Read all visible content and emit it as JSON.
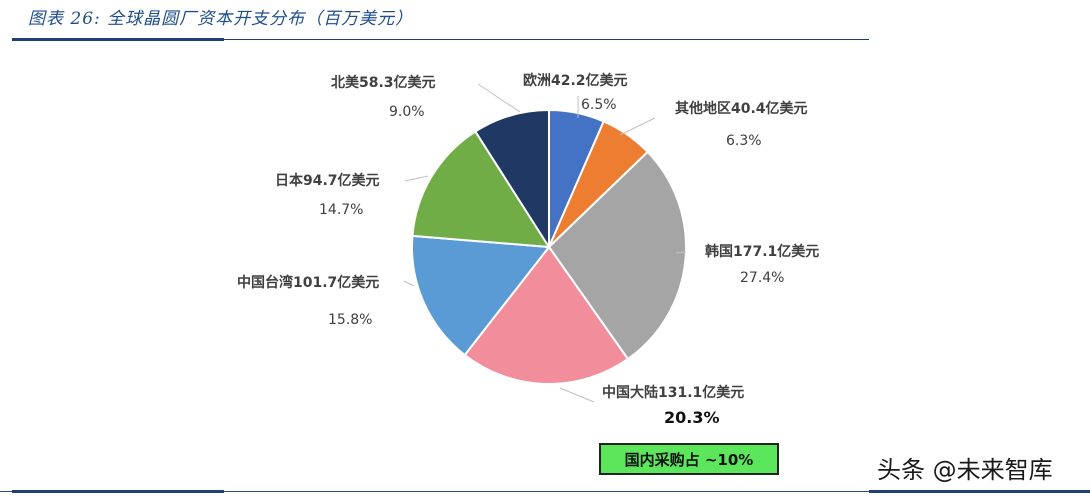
{
  "figure": {
    "title": "图表 26:  全球晶圆厂资本开支分布（百万美元）"
  },
  "chart_data": {
    "type": "pie",
    "title": "图表 26: 全球晶圆厂资本开支分布（百万美元）",
    "unit": "亿美元",
    "start_angle": "12 o'clock",
    "direction": "clockwise",
    "slices": [
      {
        "name": "欧洲",
        "value": 42.2,
        "percent": 6.5,
        "color": "#4472c4",
        "label": "欧洲42.2亿美元",
        "pct_label": "6.5%"
      },
      {
        "name": "其他地区",
        "value": 40.4,
        "percent": 6.3,
        "color": "#ed7d31",
        "label": "其他地区40.4亿美元",
        "pct_label": "6.3%"
      },
      {
        "name": "韩国",
        "value": 177.1,
        "percent": 27.4,
        "color": "#a5a5a5",
        "label": "韩国177.1亿美元",
        "pct_label": "27.4%"
      },
      {
        "name": "中国大陆",
        "value": 131.1,
        "percent": 20.3,
        "color": "#f28e9b",
        "label": "中国大陆131.1亿美元",
        "pct_label": "20.3%"
      },
      {
        "name": "中国台湾",
        "value": 101.7,
        "percent": 15.8,
        "color": "#5b9bd5",
        "label": "中国台湾101.7亿美元",
        "pct_label": "15.8%"
      },
      {
        "name": "日本",
        "value": 94.7,
        "percent": 14.7,
        "color": "#70ad47",
        "label": "日本94.7亿美元",
        "pct_label": "14.7%"
      },
      {
        "name": "北美",
        "value": 58.3,
        "percent": 9.0,
        "color": "#203864",
        "label": "北美58.3亿美元",
        "pct_label": "9.0%"
      }
    ],
    "annotation": "国内采购占 ~10%",
    "legend": "none (data labels on leader lines)"
  },
  "callout": {
    "text": "国内采购占 ~10%",
    "color": "#5ce65c"
  },
  "watermark": "头条 @未来智库"
}
